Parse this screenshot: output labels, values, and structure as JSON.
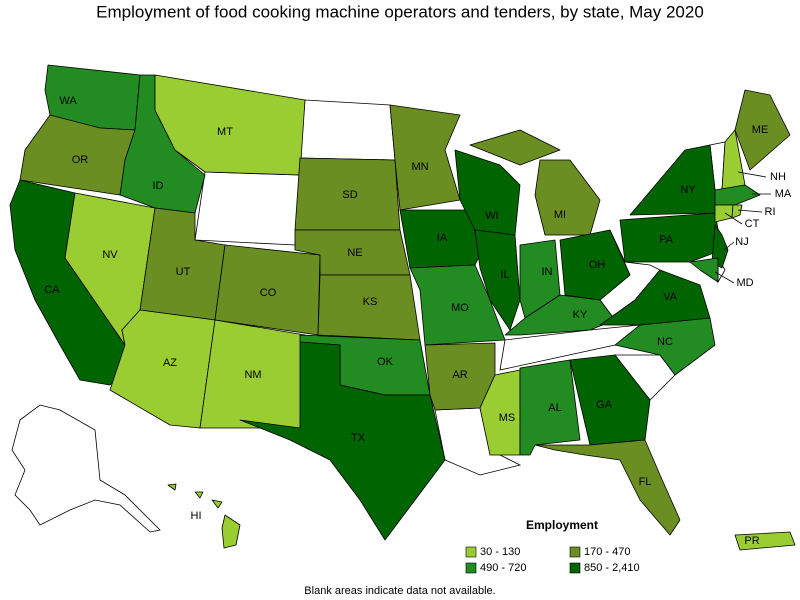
{
  "title": "Employment of food cooking machine operators and tenders, by state, May 2020",
  "states": [
    {
      "label": "WA",
      "color": "#228B22"
    },
    {
      "label": "OR",
      "color": "#6B8E23"
    },
    {
      "label": "CA",
      "color": "#006400"
    },
    {
      "label": "NV",
      "color": "#9ACD32"
    },
    {
      "label": "ID",
      "color": "#228B22"
    },
    {
      "label": "MT",
      "color": "#9ACD32"
    },
    {
      "label": "UT",
      "color": "#6B8E23"
    },
    {
      "label": "AZ",
      "color": "#9ACD32"
    },
    {
      "label": "CO",
      "color": "#6B8E23"
    },
    {
      "label": "NM",
      "color": "#9ACD32"
    },
    {
      "label": "SD",
      "color": "#6B8E23"
    },
    {
      "label": "NE",
      "color": "#6B8E23"
    },
    {
      "label": "KS",
      "color": "#6B8E23"
    },
    {
      "label": "OK",
      "color": "#228B22"
    },
    {
      "label": "TX",
      "color": "#006400"
    },
    {
      "label": "MN",
      "color": "#6B8E23"
    },
    {
      "label": "IA",
      "color": "#006400"
    },
    {
      "label": "MO",
      "color": "#228B22"
    },
    {
      "label": "AR",
      "color": "#6B8E23"
    },
    {
      "label": "WI",
      "color": "#006400"
    },
    {
      "label": "IL",
      "color": "#006400"
    },
    {
      "label": "MI",
      "color": "#6B8E23"
    },
    {
      "label": "IN",
      "color": "#228B22"
    },
    {
      "label": "OH",
      "color": "#006400"
    },
    {
      "label": "KY",
      "color": "#228B22"
    },
    {
      "label": "MS",
      "color": "#9ACD32"
    },
    {
      "label": "AL",
      "color": "#228B22"
    },
    {
      "label": "GA",
      "color": "#006400"
    },
    {
      "label": "FL",
      "color": "#6B8E23"
    },
    {
      "label": "NC",
      "color": "#228B22"
    },
    {
      "label": "VA",
      "color": "#006400"
    },
    {
      "label": "PA",
      "color": "#006400"
    },
    {
      "label": "NY",
      "color": "#006400"
    },
    {
      "label": "NJ",
      "color": "#006400"
    },
    {
      "label": "MD",
      "color": "#228B22"
    },
    {
      "label": "NH",
      "color": "#9ACD32"
    },
    {
      "label": "ME",
      "color": "#6B8E23"
    },
    {
      "label": "MA",
      "color": "#228B22"
    },
    {
      "label": "CT",
      "color": "#9ACD32"
    },
    {
      "label": "RI",
      "color": "#9ACD32"
    },
    {
      "label": "HI",
      "color": "#9ACD32"
    },
    {
      "label": "PR",
      "color": "#9ACD32"
    }
  ],
  "legend": {
    "title": "Employment",
    "items": [
      {
        "label": "30 - 130",
        "color": "#9ACD32"
      },
      {
        "label": "170 - 470",
        "color": "#6B8E23"
      },
      {
        "label": "490 - 720",
        "color": "#228B22"
      },
      {
        "label": "850 - 2,410",
        "color": "#006400"
      }
    ]
  },
  "footnote": "Blank areas indicate data not available."
}
